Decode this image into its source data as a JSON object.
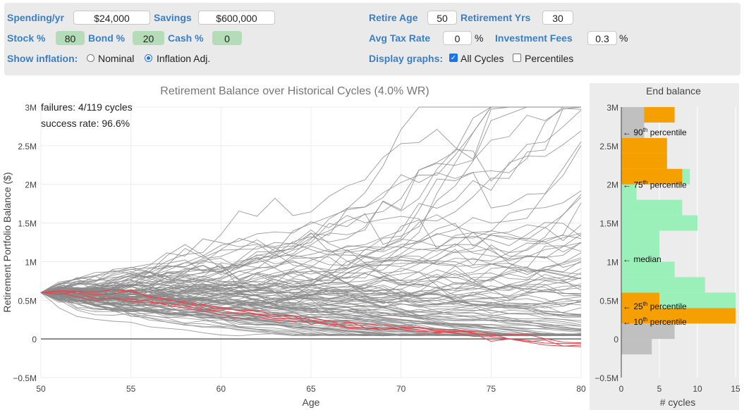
{
  "controls": {
    "spending_label": "Spending/yr",
    "spending_value": "$24,000",
    "savings_label": "Savings",
    "savings_value": "$600,000",
    "stock_label": "Stock %",
    "stock_value": "80",
    "bond_label": "Bond %",
    "bond_value": "20",
    "cash_label": "Cash %",
    "cash_value": "0",
    "inflation_label": "Show inflation:",
    "nominal_label": "Nominal",
    "inflation_adj_label": "Inflation Adj.",
    "inflation_mode": "Inflation Adj.",
    "retire_age_label": "Retire Age",
    "retire_age_value": "50",
    "retire_yrs_label": "Retirement Yrs",
    "retire_yrs_value": "30",
    "tax_label": "Avg Tax Rate",
    "tax_value": "0",
    "tax_unit": "%",
    "fees_label": "Investment Fees",
    "fees_value": "0.3",
    "fees_unit": "%",
    "display_label": "Display graphs:",
    "all_cycles_label": "All Cycles",
    "all_cycles_checked": true,
    "percentiles_label": "Percentiles",
    "percentiles_checked": false
  },
  "chart_data": [
    {
      "type": "line",
      "title": "Retirement Balance over Historical Cycles (4.0% WR)",
      "xlabel": "Age",
      "ylabel": "Retirement Portfolio Balance ($)",
      "xlim": [
        50,
        80
      ],
      "ylim": [
        -500000,
        3000000
      ],
      "x_ticks": [
        "50",
        "55",
        "60",
        "65",
        "70",
        "75",
        "80"
      ],
      "y_ticks": [
        "3M",
        "2.5M",
        "2M",
        "1.5M",
        "1M",
        "0.5M",
        "0",
        "−0.5M"
      ],
      "start_balance": 600000,
      "series_count": 119,
      "failures": 4,
      "annotations": [
        "failures: 4/119 cycles",
        "success rate: 96.6%"
      ],
      "colors": {
        "success": "#8a8a8a",
        "failure": "#e8424a",
        "zero": "#666666"
      },
      "sample_series": [
        {
          "name": "",
          "x": [
            50,
            55,
            60,
            65,
            70,
            75,
            80
          ],
          "y": [
            600000,
            520000,
            350000,
            220000,
            120000,
            20000,
            -80000
          ],
          "failed": true
        },
        {
          "name": "",
          "x": [
            50,
            55,
            60,
            65,
            70,
            75,
            80
          ],
          "y": [
            600000,
            600000,
            400000,
            250000,
            150000,
            50000,
            -50000
          ],
          "failed": true
        },
        {
          "name": "",
          "x": [
            50,
            55,
            60,
            65,
            70,
            75,
            80
          ],
          "y": [
            600000,
            580000,
            380000,
            230000,
            130000,
            40000,
            -60000
          ],
          "failed": true
        },
        {
          "name": "",
          "x": [
            50,
            55,
            60,
            65,
            70,
            75,
            80
          ],
          "y": [
            600000,
            500000,
            330000,
            200000,
            110000,
            20000,
            -100000
          ],
          "failed": true
        },
        {
          "name": "",
          "x": [
            50,
            55,
            60,
            65,
            70,
            75,
            80
          ],
          "y": [
            600000,
            900000,
            1300000,
            1900000,
            2500000,
            2600000,
            2800000
          ],
          "failed": false
        },
        {
          "name": "",
          "x": [
            50,
            55,
            60,
            65,
            70,
            75,
            80
          ],
          "y": [
            600000,
            700000,
            800000,
            900000,
            1000000,
            1100000,
            1200000
          ],
          "failed": false
        },
        {
          "name": "",
          "x": [
            50,
            55,
            60,
            65,
            70,
            75,
            80
          ],
          "y": [
            600000,
            800000,
            1100000,
            1400000,
            1600000,
            1900000,
            2100000
          ],
          "failed": false
        },
        {
          "name": "",
          "x": [
            50,
            55,
            60,
            65,
            70,
            75,
            80
          ],
          "y": [
            600000,
            550000,
            500000,
            450000,
            400000,
            350000,
            300000
          ],
          "failed": false
        }
      ]
    },
    {
      "type": "bar",
      "orientation": "horizontal",
      "title": "End balance",
      "xlabel": "# cycles",
      "ylabel": "",
      "xlim": [
        0,
        15
      ],
      "ylim": [
        -500000,
        3000000
      ],
      "x_ticks": [
        "0",
        "5",
        "10",
        "15"
      ],
      "y_ticks": [
        "3M",
        "2.5M",
        "2M",
        "1.5M",
        "1M",
        "0.5M",
        "0",
        "−0.5M"
      ],
      "bin_size": 200000,
      "bins": [
        {
          "y": -200000,
          "value": 4,
          "color": "#c0c0c0"
        },
        {
          "y": 0,
          "value": 7,
          "color": "#c0c0c0"
        },
        {
          "y": 200000,
          "value": 15,
          "color": "#f5a000"
        },
        {
          "y": 400000,
          "value": 15,
          "color": "#9af0b8"
        },
        {
          "y": 400000,
          "value": 5,
          "color": "#f5a000"
        },
        {
          "y": 600000,
          "value": 11,
          "color": "#9af0b8"
        },
        {
          "y": 800000,
          "value": 7,
          "color": "#9af0b8"
        },
        {
          "y": 1000000,
          "value": 5,
          "color": "#9af0b8"
        },
        {
          "y": 1200000,
          "value": 5,
          "color": "#9af0b8"
        },
        {
          "y": 1400000,
          "value": 10,
          "color": "#9af0b8"
        },
        {
          "y": 1600000,
          "value": 8,
          "color": "#9af0b8"
        },
        {
          "y": 1800000,
          "value": 2,
          "color": "#9af0b8"
        },
        {
          "y": 2000000,
          "value": 9,
          "color": "#9af0b8"
        },
        {
          "y": 2000000,
          "value": 8,
          "color": "#f5a000"
        },
        {
          "y": 2200000,
          "value": 6,
          "color": "#f5a000"
        },
        {
          "y": 2400000,
          "value": 6,
          "color": "#f5a000"
        },
        {
          "y": 2600000,
          "value": 1,
          "color": "#f5a000"
        },
        {
          "y": 2600000,
          "value": 3,
          "color": "#c0c0c0"
        },
        {
          "y": 2800000,
          "value": 7,
          "color": "#f5a000"
        },
        {
          "y": 2800000,
          "value": 3,
          "color": "#c0c0c0"
        }
      ],
      "percentile_markers": [
        {
          "value": 2680000,
          "prefix": "← 90",
          "sup": "th",
          "suffix": " percentile"
        },
        {
          "value": 2000000,
          "prefix": "← 75",
          "sup": "th",
          "suffix": " percentile"
        },
        {
          "value": 1040000,
          "prefix": "← median",
          "sup": "",
          "suffix": ""
        },
        {
          "value": 430000,
          "prefix": "← 25",
          "sup": "th",
          "suffix": " percentile"
        },
        {
          "value": 230000,
          "prefix": "← 10",
          "sup": "th",
          "suffix": " percentile"
        }
      ]
    }
  ]
}
